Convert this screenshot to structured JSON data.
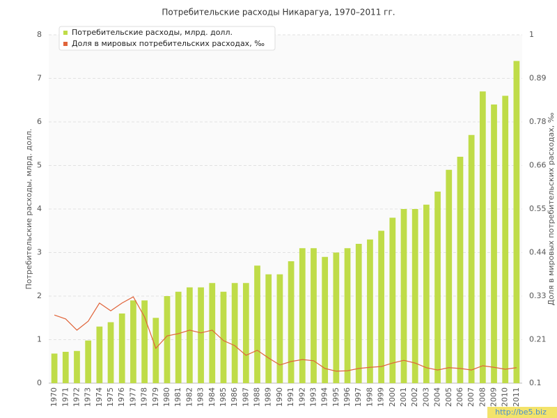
{
  "chart_data": {
    "type": "bar",
    "title": "Потребительские расходы Никарагуа, 1970–2011 гг.",
    "y_label": "Потребительские расходы, млрд. долл.",
    "y2_label": "Доля в мировых потребительских расходах, ‰",
    "watermark": "http://be5.biz",
    "categories": [
      "1970",
      "1971",
      "1972",
      "1973",
      "1974",
      "1975",
      "1976",
      "1977",
      "1978",
      "1979",
      "1980",
      "1981",
      "1982",
      "1983",
      "1984",
      "1985",
      "1986",
      "1987",
      "1988",
      "1989",
      "1990",
      "1991",
      "1992",
      "1993",
      "1994",
      "1995",
      "1996",
      "1997",
      "1998",
      "1999",
      "2000",
      "2001",
      "2002",
      "2003",
      "2004",
      "2005",
      "2006",
      "2007",
      "2008",
      "2009",
      "2010",
      "2011"
    ],
    "series": [
      {
        "name": "Потребительские расходы, млрд. долл.",
        "type": "bar",
        "color": "#bfdc48",
        "values": [
          0.68,
          0.72,
          0.74,
          0.98,
          1.3,
          1.4,
          1.6,
          1.9,
          1.9,
          1.5,
          2.0,
          2.1,
          2.2,
          2.2,
          2.3,
          2.1,
          2.3,
          2.3,
          2.7,
          2.5,
          2.5,
          2.8,
          3.1,
          3.1,
          2.9,
          3.0,
          3.1,
          3.2,
          3.3,
          3.5,
          3.8,
          4.0,
          4.0,
          4.1,
          4.4,
          4.9,
          5.2,
          5.7,
          6.7,
          6.4,
          6.6,
          7.4
        ]
      },
      {
        "name": "Доля в мировых потребительских расходах, ‰",
        "type": "line",
        "axis": "y2",
        "color": "#e0643a",
        "values": [
          0.276,
          0.266,
          0.237,
          0.26,
          0.307,
          0.287,
          0.307,
          0.323,
          0.271,
          0.19,
          0.222,
          0.228,
          0.237,
          0.23,
          0.237,
          0.21,
          0.197,
          0.172,
          0.185,
          0.165,
          0.147,
          0.156,
          0.161,
          0.158,
          0.138,
          0.131,
          0.132,
          0.138,
          0.141,
          0.143,
          0.152,
          0.159,
          0.152,
          0.14,
          0.134,
          0.14,
          0.138,
          0.134,
          0.145,
          0.141,
          0.136,
          0.14
        ]
      }
    ],
    "ylim": [
      0,
      8
    ],
    "yticks": [
      0,
      1,
      2,
      3,
      4,
      5,
      6,
      7,
      8
    ],
    "y2lim": [
      0.1,
      1
    ],
    "y2ticks": [
      {
        "value": 0.1,
        "label": "0.1"
      },
      {
        "value": 0.2125,
        "label": "0.21"
      },
      {
        "value": 0.325,
        "label": "0.33"
      },
      {
        "value": 0.4375,
        "label": "0.44"
      },
      {
        "value": 0.55,
        "label": "0.55"
      },
      {
        "value": 0.6625,
        "label": "0.66"
      },
      {
        "value": 0.775,
        "label": "0.78"
      },
      {
        "value": 0.8875,
        "label": "0.89"
      },
      {
        "value": 1,
        "label": "1"
      }
    ],
    "grid": true,
    "legend": "top-left"
  }
}
